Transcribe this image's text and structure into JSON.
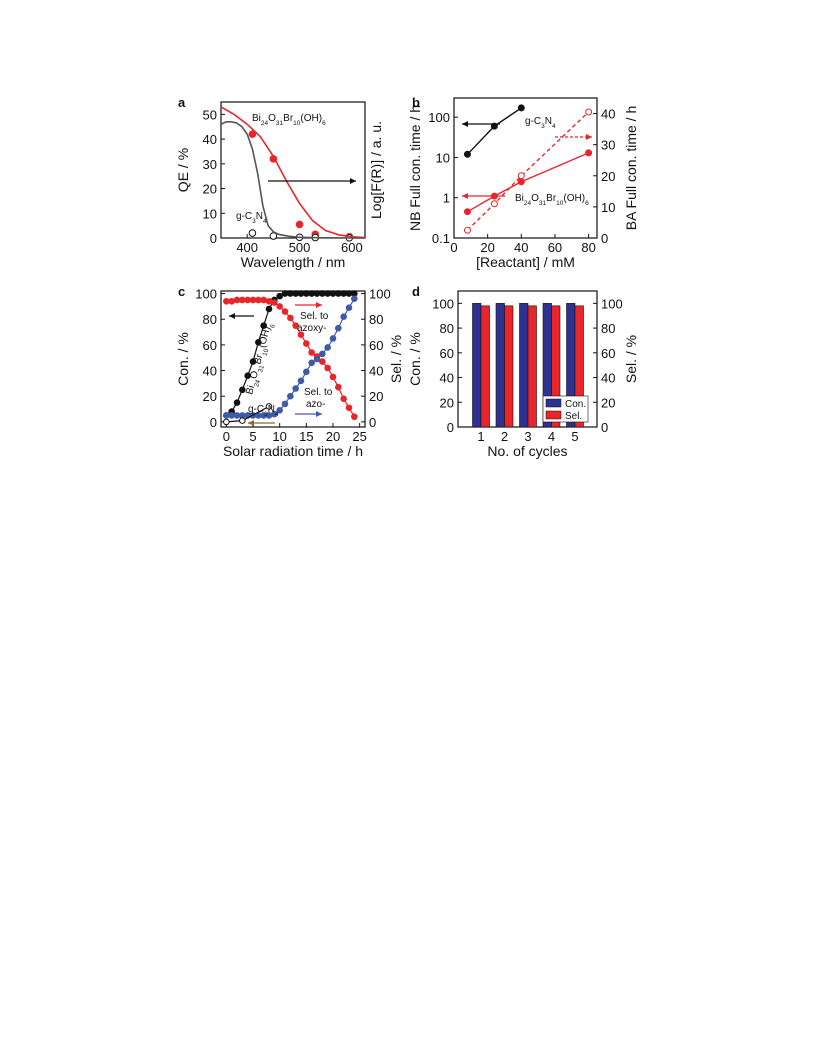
{
  "figure": {
    "chart_data": [
      {
        "panel": "a",
        "type": "line",
        "xlabel": "Wavelength / nm",
        "ylabel_left": "QE / %",
        "ylabel_right": "Log[F(R)] / a. u.",
        "xlim": [
          350,
          625
        ],
        "ylim": [
          0,
          55
        ],
        "xticks": [
          400,
          500,
          600
        ],
        "yticks_left": [
          0,
          10,
          20,
          30,
          40,
          50
        ],
        "labels": [
          "Bi24O31Br10(OH)6",
          "g-C3N4"
        ],
        "series": [
          {
            "name": "Bi24O31Br10(OH)6",
            "kind": "points",
            "filled": true,
            "color": "#e8262a",
            "x": [
              410,
              450,
              500,
              530,
              595
            ],
            "y": [
              42,
              32,
              5.5,
              1.5,
              0.5
            ]
          },
          {
            "name": "g-C3N4",
            "kind": "points",
            "filled": false,
            "color": "#111111",
            "x": [
              410,
              450,
              500,
              530,
              595
            ],
            "y": [
              2,
              0.8,
              0.3,
              0.2,
              0.1
            ]
          },
          {
            "name": "Bi24O31Br10(OH)6",
            "kind": "curve",
            "color": "#e8262a",
            "x": [
              350,
              375,
              400,
              425,
              450,
              475,
              500,
              525,
              550,
              575,
              600,
              625
            ],
            "y": [
              53,
              50,
              46,
              41,
              33,
              23,
              14,
              7,
              3,
              1.3,
              0.5,
              0.2
            ]
          },
          {
            "name": "g-C3N4",
            "kind": "curve",
            "color": "#555555",
            "x": [
              350,
              360,
              370,
              380,
              390,
              400,
              410,
              420,
              430,
              440,
              450,
              460,
              480,
              500,
              550,
              600,
              625
            ],
            "y": [
              46,
              47,
              47,
              46.5,
              45,
              42,
              36,
              26,
              13,
              5,
              2.5,
              1.5,
              0.7,
              0.3,
              0.1,
              0,
              0
            ]
          }
        ]
      },
      {
        "panel": "b",
        "type": "line",
        "xlabel": "[Reactant] / mM",
        "ylabel_left": "NB Full con. time / h",
        "ylabel_right": "BA Full con. time / h",
        "xlim": [
          0,
          85
        ],
        "ylim_left": [
          0.1,
          300
        ],
        "yscale_left": "log",
        "ylim_right": [
          0,
          45
        ],
        "xticks": [
          0,
          20,
          40,
          60,
          80
        ],
        "yticks_left": [
          "0.1",
          "1",
          "10",
          "100"
        ],
        "yticks_right": [
          0,
          10,
          20,
          30,
          40
        ],
        "labels": [
          "g-C3N4",
          "Bi24O31Br10(OH)6"
        ],
        "series": [
          {
            "name": "g-C3N4",
            "axis": "left",
            "filled": true,
            "color": "#111111",
            "x": [
              8,
              24,
              40
            ],
            "y": [
              12,
              60,
              170
            ]
          },
          {
            "name": "Bi24O31Br10(OH)6",
            "axis": "left",
            "filled": true,
            "color": "#e8262a",
            "x": [
              8,
              24,
              40,
              80
            ],
            "y": [
              0.45,
              1.1,
              2.5,
              13
            ]
          },
          {
            "name": "Bi24O31Br10(OH)6",
            "axis": "right",
            "filled": false,
            "dashed": true,
            "color": "#e8262a",
            "x": [
              8,
              24,
              40,
              80
            ],
            "y": [
              2.5,
              11,
              20,
              40.5
            ]
          }
        ]
      },
      {
        "panel": "c",
        "type": "line",
        "xlabel": "Solar radiation time / h",
        "ylabel_left": "Con. / %",
        "ylabel_right": "Sel. / %",
        "xlim": [
          -1,
          26
        ],
        "ylim": [
          -4,
          102
        ],
        "xticks": [
          0,
          5,
          10,
          15,
          20,
          25
        ],
        "yticks": [
          0,
          20,
          40,
          60,
          80,
          100
        ],
        "labels": [
          "Bi24O31Br10(OH)6",
          "g-C3N4",
          "Sel. to",
          "azoxy-",
          "Sel. to",
          "azo-"
        ],
        "series": [
          {
            "name": "Bi24O31Br10(OH)6 con.",
            "filled": true,
            "color": "#111111",
            "x": [
              0,
              1,
              2,
              3,
              4,
              5,
              6,
              7,
              8,
              9,
              10,
              11,
              12,
              13,
              14,
              15,
              16,
              17,
              18,
              19,
              20,
              21,
              22,
              23,
              24
            ],
            "y": [
              5,
              8,
              15,
              25,
              36,
              47,
              62,
              75,
              88,
              95,
              98,
              100,
              100,
              100,
              100,
              100,
              100,
              100,
              100,
              100,
              100,
              100,
              100,
              100,
              100
            ]
          },
          {
            "name": "Sel. to azoxy-",
            "filled": true,
            "color": "#e8262a",
            "x": [
              0,
              1,
              2,
              3,
              4,
              5,
              6,
              7,
              8,
              9,
              10,
              11,
              12,
              13,
              14,
              15,
              16,
              17,
              18,
              19,
              20,
              21,
              22,
              23,
              24
            ],
            "y": [
              94,
              94,
              95,
              95,
              95,
              95,
              95,
              95,
              94,
              93,
              90,
              86,
              81,
              75,
              68,
              61,
              54,
              51,
              47,
              42,
              35,
              27,
              18,
              11,
              4
            ]
          },
          {
            "name": "Sel. to azo-",
            "filled": true,
            "color": "#3e5aa8",
            "x": [
              0,
              1,
              2,
              3,
              4,
              5,
              6,
              7,
              8,
              9,
              10,
              11,
              12,
              13,
              14,
              15,
              16,
              17,
              18,
              19,
              20,
              21,
              22,
              23,
              24
            ],
            "y": [
              5,
              5,
              5,
              5,
              5,
              5,
              5,
              5,
              5,
              6,
              9,
              14,
              20,
              26,
              32,
              39,
              46,
              49,
              53,
              58,
              65,
              73,
              82,
              89,
              96
            ]
          },
          {
            "name": "g-C3N4",
            "filled": false,
            "color": "#111111",
            "x": [
              0,
              3,
              8
            ],
            "y": [
              0,
              1,
              12
            ]
          }
        ]
      },
      {
        "panel": "d",
        "type": "bar",
        "xlabel": "No. of cycles",
        "ylabel_left": "Con. / %",
        "ylabel_right": "Sel. / %",
        "ylim": [
          0,
          110
        ],
        "yticks": [
          0,
          20,
          40,
          60,
          80,
          100
        ],
        "categories": [
          "1",
          "2",
          "3",
          "4",
          "5"
        ],
        "series": [
          {
            "name": "Con.",
            "color": "#2e3192",
            "values": [
              100,
              100,
              100,
              100,
              100
            ]
          },
          {
            "name": "Sel.",
            "color": "#e8262a",
            "values": [
              98,
              98,
              98,
              98,
              98
            ]
          }
        ],
        "legend_position": "bottom-right"
      }
    ]
  }
}
